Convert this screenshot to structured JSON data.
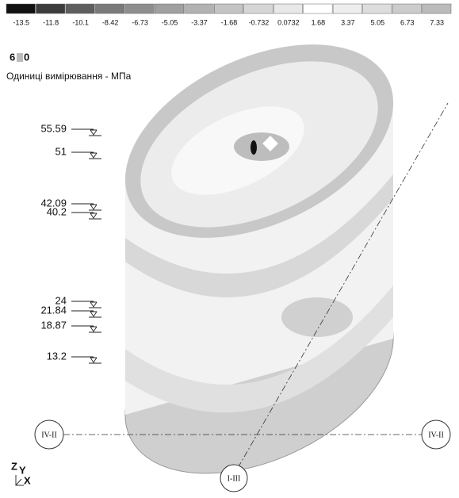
{
  "legend": {
    "labels": [
      "-13.5",
      "-11.8",
      "-10.1",
      "-8.42",
      "-6.73",
      "-5.05",
      "-3.37",
      "-1.68",
      "-0.732",
      "0.0732",
      "1.68",
      "3.37",
      "5.05",
      "6.73",
      "7.33"
    ],
    "colors": [
      "#111111",
      "#3c3c3c",
      "#5e5e5e",
      "#7a7a7a",
      "#8e8e8e",
      "#a0a0a0",
      "#b2b2b2",
      "#c4c4c4",
      "#d6d6d6",
      "#e8e8e8",
      "#ffffff",
      "#eeeeee",
      "#dddddd",
      "#cccccc",
      "#bbbbbb"
    ]
  },
  "scale": {
    "left": "6",
    "right": "0"
  },
  "units": "Одиниці вимірювання - МПа",
  "elevations": [
    "55.59",
    "51",
    "42.09",
    "40.2",
    "24",
    "21.84",
    "18.87",
    "13.2"
  ],
  "axes": {
    "left": "IV-II",
    "right": "IV-II",
    "bottom": "I-III"
  },
  "triad": {
    "z": "Z",
    "y": "Y",
    "x": "X"
  }
}
